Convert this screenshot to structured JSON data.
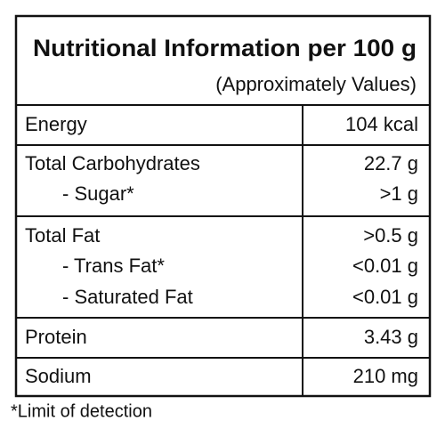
{
  "header": {
    "title": "Nutritional Information per 100 g",
    "subtitle": "(Approximately Values)"
  },
  "table": {
    "groups": [
      {
        "items": [
          {
            "label": "Energy",
            "value": "104 kcal"
          }
        ]
      },
      {
        "items": [
          {
            "label": "Total Carbohydrates",
            "value": "22.7 g"
          },
          {
            "label": "- Sugar*",
            "value": ">1 g"
          }
        ]
      },
      {
        "items": [
          {
            "label": "Total Fat",
            "value": ">0.5 g"
          },
          {
            "label": "- Trans Fat*",
            "value": "<0.01 g"
          },
          {
            "label": "- Saturated Fat",
            "value": "<0.01 g"
          }
        ]
      },
      {
        "items": [
          {
            "label": "Protein",
            "value": "3.43 g"
          }
        ]
      },
      {
        "items": [
          {
            "label": "Sodium",
            "value": "210 mg"
          }
        ]
      }
    ]
  },
  "footnote": "*Limit of detection"
}
